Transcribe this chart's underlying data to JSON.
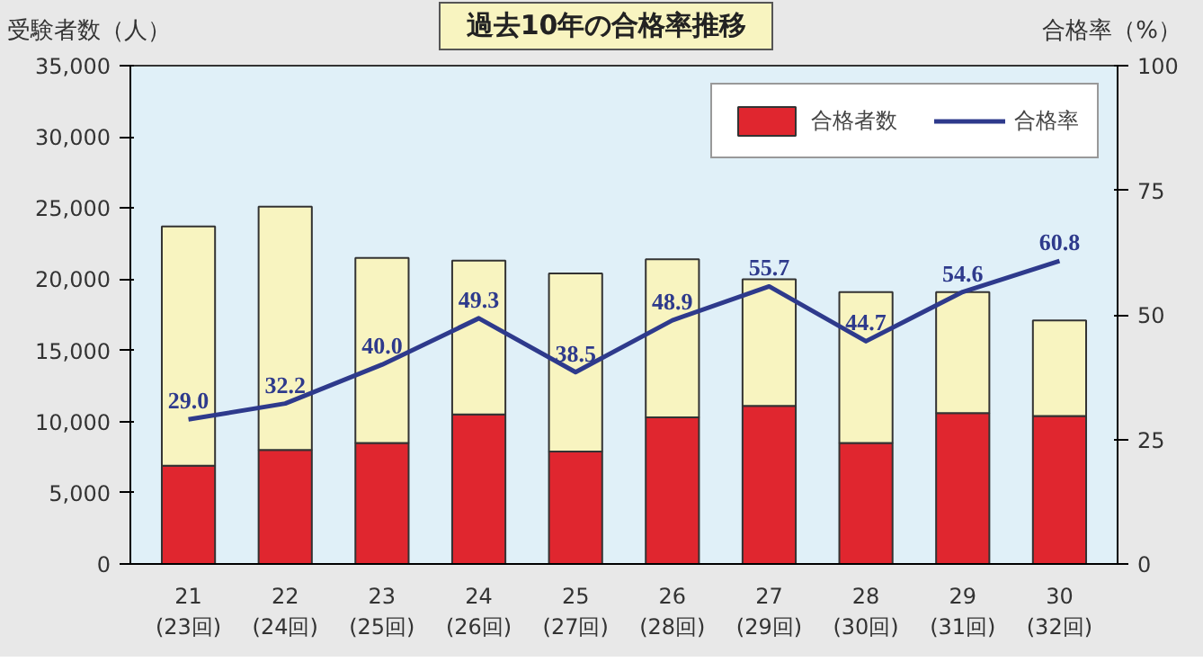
{
  "chart_data": {
    "type": "bar",
    "title": "過去10年の合格率推移",
    "ylabel": "受験者数（人）",
    "y2label": "合格率（%）",
    "categories": [
      "21\n(23回)",
      "22\n(24回)",
      "23\n(25回)",
      "24\n(26回)",
      "25\n(27回)",
      "26\n(28回)",
      "27\n(29回)",
      "28\n(30回)",
      "29\n(31回)",
      "30\n(32回)"
    ],
    "stacked": true,
    "series": [
      {
        "name": "合格者数",
        "color": "#e0262f",
        "values": [
          6900,
          8000,
          8500,
          10500,
          7900,
          10300,
          11100,
          8500,
          10600,
          10400
        ]
      },
      {
        "color": "#f8f4c0",
        "values": [
          16800,
          17100,
          13000,
          10800,
          12500,
          11100,
          8900,
          10600,
          8500,
          6700
        ]
      },
      {
        "name": "合格率",
        "type": "line",
        "axis": "y2",
        "color": "#2e3a8c",
        "values": [
          29.0,
          32.2,
          40.0,
          49.3,
          38.5,
          48.9,
          55.7,
          44.7,
          54.6,
          60.8
        ],
        "value_labels": [
          "29.0",
          "32.2",
          "40.0",
          "49.3",
          "38.5",
          "48.9",
          "55.7",
          "44.7",
          "54.6",
          "60.8"
        ]
      }
    ],
    "ylim": [
      0,
      35000
    ],
    "yticks": [
      {
        "value": 0,
        "label": "0"
      },
      {
        "value": 5000,
        "label": "5,000"
      },
      {
        "value": 10000,
        "label": "10,000"
      },
      {
        "value": 15000,
        "label": "15,000"
      },
      {
        "value": 20000,
        "label": "20,000"
      },
      {
        "value": 25000,
        "label": "25,000"
      },
      {
        "value": 30000,
        "label": "30,000"
      },
      {
        "value": 35000,
        "label": "35,000"
      }
    ],
    "y2lim": [
      0,
      100
    ],
    "y2ticks": [
      0,
      25,
      50,
      75,
      100
    ],
    "grid": false,
    "legend": "top right"
  }
}
